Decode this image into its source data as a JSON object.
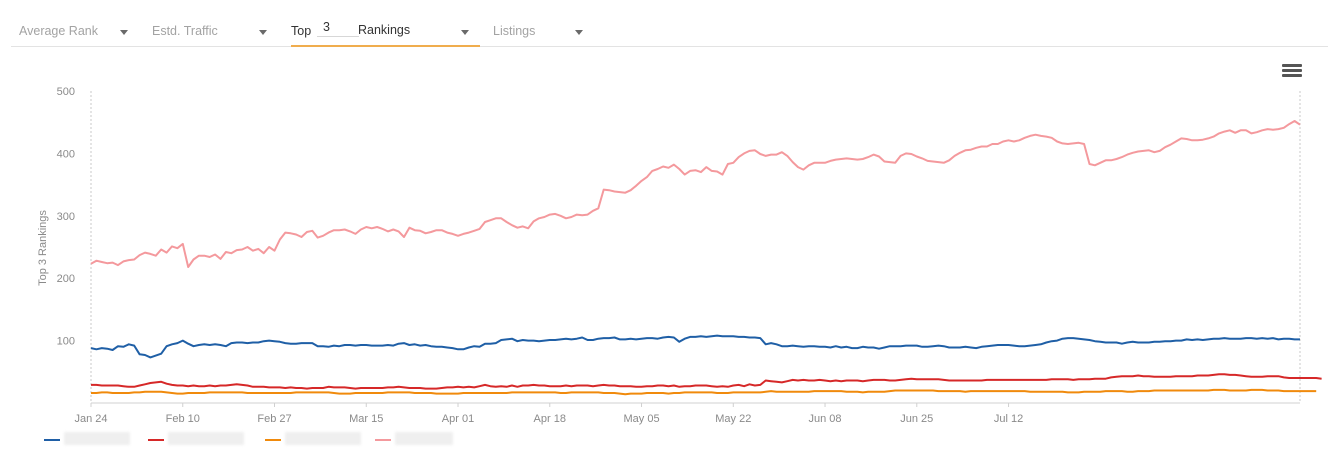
{
  "toolbar": {
    "tabs": [
      {
        "label": "Average Rank",
        "active": false
      },
      {
        "label": "Estd. Traffic",
        "active": false
      },
      {
        "label": "Top",
        "suffix": "Rankings",
        "value": "3",
        "active": true
      },
      {
        "label": "Listings",
        "active": false
      }
    ]
  },
  "menu": {
    "icon": "hamburger-icon"
  },
  "colors": {
    "blue": "#1f5fa6",
    "red": "#d62828",
    "orange": "#f08a0c",
    "pink": "#f4999d"
  },
  "chart_data": {
    "type": "line",
    "title": "",
    "xlabel": "",
    "ylabel": "Top 3 Rankings",
    "ylim": [
      0,
      500
    ],
    "yticks": [
      100,
      200,
      300,
      400,
      500
    ],
    "x_ticks": [
      "Jan 24",
      "Feb 10",
      "Feb 27",
      "Mar 15",
      "Apr 01",
      "Apr 18",
      "May 05",
      "May 22",
      "Jun 08",
      "Jun 25",
      "Jul 12"
    ],
    "x_start": "Jan 24",
    "grid": false,
    "legend": "bottom-left",
    "series": [
      {
        "color": "#1f5fa6",
        "label_hidden": true,
        "values": [
          88,
          86,
          88,
          87,
          85,
          91,
          90,
          94,
          92,
          78,
          77,
          73,
          76,
          79,
          91,
          94,
          96,
          100,
          95,
          91,
          93,
          94,
          93,
          94,
          93,
          91,
          96,
          97,
          97,
          96,
          97,
          97,
          99,
          100,
          99,
          98,
          96,
          95,
          95,
          96,
          96,
          96,
          91,
          91,
          90,
          92,
          91,
          93,
          93,
          92,
          93,
          93,
          92,
          92,
          92,
          93,
          92,
          95,
          96,
          93,
          94,
          92,
          93,
          91,
          90,
          90,
          89,
          88,
          86,
          86,
          89,
          91,
          90,
          95,
          95,
          96,
          101,
          102,
          103,
          99,
          101,
          100,
          100,
          99,
          100,
          101,
          101,
          102,
          103,
          102,
          103,
          105,
          101,
          101,
          103,
          104,
          104,
          105,
          102,
          102,
          103,
          102,
          103,
          104,
          104,
          103,
          105,
          106,
          105,
          98,
          103,
          106,
          106,
          107,
          106,
          107,
          108,
          107,
          107,
          107,
          106,
          106,
          105,
          105,
          104,
          94,
          96,
          94,
          91,
          91,
          92,
          91,
          90,
          91,
          91,
          90,
          90,
          89,
          91,
          89,
          90,
          88,
          88,
          90,
          89,
          89,
          87,
          89,
          91,
          91,
          91,
          92,
          92,
          92,
          90,
          90,
          91,
          92,
          91,
          89,
          89,
          89,
          90,
          89,
          88,
          90,
          91,
          92,
          93,
          93,
          93,
          92,
          91,
          91,
          92,
          93,
          94,
          97,
          99,
          100,
          103,
          104,
          104,
          103,
          102,
          101,
          99,
          98,
          97,
          97,
          97,
          95,
          97,
          98,
          97,
          97,
          97,
          98,
          98,
          99,
          99,
          100,
          100,
          102,
          101,
          102,
          101,
          102,
          103,
          103,
          104,
          103,
          103,
          103,
          104,
          104,
          103,
          104,
          103,
          104,
          102,
          103,
          103,
          102,
          102
        ]
      },
      {
        "color": "#d62828",
        "label_hidden": true,
        "values": [
          29,
          29,
          28,
          28,
          28,
          28,
          27,
          26,
          26,
          28,
          30,
          32,
          33,
          34,
          31,
          29,
          28,
          28,
          27,
          28,
          27,
          27,
          28,
          27,
          28,
          28,
          29,
          30,
          29,
          28,
          26,
          26,
          26,
          25,
          25,
          25,
          24,
          25,
          24,
          24,
          23,
          24,
          24,
          24,
          26,
          25,
          25,
          25,
          24,
          23,
          24,
          24,
          24,
          24,
          24,
          25,
          25,
          26,
          25,
          24,
          24,
          24,
          23,
          23,
          23,
          24,
          25,
          25,
          26,
          25,
          26,
          25,
          27,
          29,
          27,
          26,
          27,
          26,
          28,
          26,
          28,
          28,
          29,
          28,
          28,
          27,
          27,
          27,
          28,
          27,
          28,
          28,
          28,
          27,
          28,
          29,
          28,
          28,
          27,
          27,
          27,
          26,
          26,
          27,
          27,
          28,
          28,
          27,
          28,
          26,
          27,
          27,
          28,
          28,
          28,
          27,
          26,
          27,
          26,
          28,
          29,
          27,
          30,
          28,
          29,
          36,
          35,
          34,
          33,
          35,
          37,
          36,
          37,
          36,
          36,
          37,
          36,
          35,
          36,
          35,
          36,
          36,
          36,
          35,
          36,
          37,
          37,
          37,
          36,
          36,
          37,
          38,
          39,
          38,
          38,
          38,
          38,
          38,
          37,
          36,
          36,
          36,
          36,
          36,
          36,
          36,
          37,
          37,
          37,
          37,
          37,
          37,
          37,
          37,
          37,
          37,
          37,
          37,
          38,
          38,
          38,
          38,
          37,
          38,
          38,
          38,
          39,
          39,
          39,
          41,
          42,
          43,
          43,
          43,
          44,
          43,
          43,
          42,
          42,
          42,
          42,
          43,
          43,
          43,
          43,
          44,
          44,
          44,
          45,
          46,
          46,
          45,
          45,
          44,
          43,
          42,
          42,
          42,
          43,
          43,
          43,
          41,
          40,
          40,
          40,
          40,
          40,
          40,
          39
        ]
      },
      {
        "color": "#f08a0c",
        "label_hidden": true,
        "values": [
          16,
          16,
          17,
          17,
          16,
          16,
          16,
          16,
          17,
          17,
          18,
          18,
          18,
          18,
          17,
          16,
          15,
          15,
          16,
          16,
          16,
          16,
          17,
          17,
          17,
          17,
          17,
          17,
          17,
          16,
          16,
          16,
          16,
          16,
          16,
          16,
          16,
          16,
          17,
          17,
          17,
          17,
          17,
          17,
          17,
          16,
          15,
          15,
          15,
          16,
          16,
          16,
          16,
          16,
          16,
          17,
          17,
          17,
          17,
          17,
          16,
          16,
          16,
          16,
          15,
          15,
          15,
          15,
          15,
          16,
          16,
          16,
          16,
          16,
          16,
          16,
          16,
          16,
          17,
          17,
          17,
          17,
          17,
          17,
          17,
          17,
          17,
          16,
          16,
          17,
          17,
          17,
          17,
          17,
          17,
          16,
          16,
          16,
          15,
          14,
          15,
          15,
          15,
          16,
          16,
          16,
          16,
          15,
          16,
          16,
          17,
          17,
          17,
          17,
          17,
          17,
          16,
          16,
          16,
          17,
          17,
          17,
          17,
          17,
          17,
          18,
          19,
          18,
          18,
          18,
          18,
          18,
          18,
          18,
          19,
          19,
          19,
          19,
          19,
          19,
          18,
          18,
          18,
          17,
          18,
          18,
          18,
          18,
          19,
          20,
          20,
          20,
          20,
          20,
          20,
          20,
          20,
          19,
          19,
          19,
          19,
          19,
          18,
          19,
          19,
          19,
          19,
          19,
          19,
          19,
          19,
          19,
          19,
          19,
          18,
          18,
          18,
          18,
          18,
          18,
          18,
          17,
          17,
          17,
          18,
          18,
          18,
          18,
          19,
          19,
          19,
          19,
          18,
          18,
          19,
          19,
          19,
          20,
          20,
          20,
          20,
          20,
          20,
          20,
          20,
          20,
          20,
          20,
          21,
          21,
          21,
          20,
          20,
          20,
          20,
          21,
          21,
          21,
          20,
          20,
          20,
          19,
          19,
          19,
          19,
          19,
          19,
          19
        ]
      },
      {
        "color": "#f4999d",
        "label_hidden": true,
        "values": [
          223,
          228,
          226,
          224,
          225,
          221,
          227,
          229,
          230,
          237,
          241,
          239,
          236,
          246,
          241,
          251,
          248,
          255,
          218,
          230,
          236,
          236,
          234,
          238,
          231,
          242,
          240,
          245,
          246,
          250,
          244,
          247,
          240,
          250,
          244,
          262,
          273,
          272,
          270,
          266,
          274,
          276,
          265,
          268,
          273,
          277,
          277,
          278,
          275,
          271,
          278,
          282,
          280,
          282,
          279,
          275,
          278,
          275,
          266,
          281,
          277,
          276,
          272,
          274,
          277,
          277,
          273,
          271,
          268,
          271,
          273,
          276,
          279,
          290,
          293,
          296,
          296,
          290,
          285,
          281,
          283,
          280,
          291,
          296,
          298,
          302,
          303,
          300,
          296,
          298,
          302,
          301,
          302,
          308,
          312,
          342,
          341,
          339,
          338,
          337,
          341,
          348,
          356,
          362,
          372,
          375,
          379,
          377,
          382,
          375,
          366,
          372,
          373,
          370,
          378,
          372,
          371,
          366,
          383,
          385,
          394,
          400,
          404,
          405,
          399,
          396,
          398,
          398,
          402,
          396,
          386,
          378,
          374,
          381,
          385,
          385,
          385,
          388,
          390,
          391,
          392,
          391,
          390,
          391,
          394,
          398,
          395,
          387,
          386,
          385,
          396,
          400,
          399,
          395,
          392,
          388,
          387,
          386,
          385,
          389,
          396,
          401,
          405,
          406,
          409,
          411,
          411,
          415,
          415,
          419,
          421,
          419,
          421,
          425,
          428,
          430,
          428,
          427,
          425,
          419,
          416,
          415,
          416,
          417,
          415,
          383,
          381,
          385,
          389,
          389,
          391,
          394,
          398,
          401,
          403,
          404,
          405,
          402,
          404,
          410,
          414,
          419,
          424,
          423,
          421,
          421,
          422,
          424,
          427,
          432,
          435,
          437,
          433,
          437,
          437,
          432,
          434,
          437,
          439,
          438,
          439,
          441,
          447,
          452,
          446
        ]
      }
    ]
  }
}
